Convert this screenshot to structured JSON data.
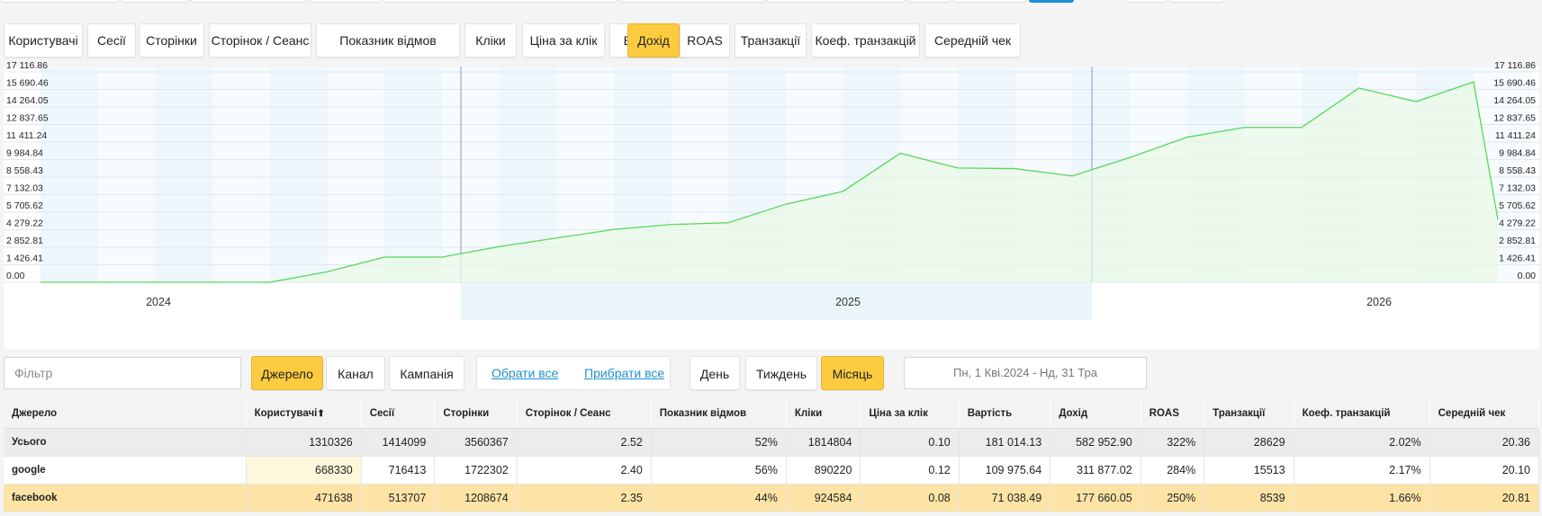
{
  "metric_tabs": [
    {
      "label": "Користувачі",
      "active": false
    },
    {
      "label": "Сесії",
      "active": false
    },
    {
      "label": "Сторінки",
      "active": false
    },
    {
      "label": "Сторінок / Сеанс",
      "active": false
    },
    {
      "label": "Показник відмов",
      "active": false
    },
    {
      "label": "Кліки",
      "active": false
    },
    {
      "label": "Ціна за клік",
      "active": false
    },
    {
      "label": "Вартість",
      "active": false
    },
    {
      "label": "Дохід",
      "active": true
    },
    {
      "label": "ROAS",
      "active": false
    },
    {
      "label": "Транзакції",
      "active": false
    },
    {
      "label": "Коеф. транзакцій",
      "active": false
    },
    {
      "label": "Середній чек",
      "active": false
    }
  ],
  "chart_data": {
    "type": "area",
    "y_ticks": [
      "0.00",
      "1 426.41",
      "2 852.81",
      "4 279.22",
      "5 705.62",
      "7 132.03",
      "8 558.43",
      "9 984.84",
      "11 411.24",
      "12 837.65",
      "14 264.05",
      "15 690.46",
      "17 116.86"
    ],
    "ylim": [
      0,
      17116.86
    ],
    "year_labels": [
      "2024",
      "2025",
      "2026"
    ],
    "series": [
      {
        "values": [
          0,
          0,
          0,
          0,
          0,
          850,
          2050,
          2050,
          2900,
          3600,
          4300,
          4700,
          4850,
          6350,
          7400,
          10500,
          9300,
          9250,
          8650,
          10150,
          11800,
          12600,
          12600,
          15800,
          14700,
          16300,
          5100
        ]
      }
    ],
    "grid": true,
    "colors": {
      "line": "#57d85a",
      "fill": "#e9f9e6",
      "year_boundary": "#7d9ad4",
      "band": "#eaf5fb"
    }
  },
  "controls": {
    "filter_placeholder": "Фільтр",
    "group_buttons": [
      {
        "label": "Джерело",
        "active": true
      },
      {
        "label": "Канал",
        "active": false
      },
      {
        "label": "Кампанія",
        "active": false
      }
    ],
    "select_all": "Обрати все",
    "remove_all": "Прибрати все",
    "period_buttons": [
      {
        "label": "День",
        "active": false
      },
      {
        "label": "Тиждень",
        "active": false
      },
      {
        "label": "Місяць",
        "active": true
      }
    ],
    "date_range": "Пн, 1 Кві.2024 - Нд, 31 Тра"
  },
  "table": {
    "columns": [
      "Джерело",
      "Користувачі",
      "Сесії",
      "Сторінки",
      "Сторінок / Сеанс",
      "Показник відмов",
      "Кліки",
      "Ціна за клік",
      "Вартість",
      "Дохід",
      "ROAS",
      "Транзакції",
      "Коеф. транзакцій",
      "Середній чек"
    ],
    "sort_indicator": "⬆",
    "rows": [
      {
        "kind": "total",
        "cells": [
          "Усього",
          "1310326",
          "1414099",
          "3560367",
          "2.52",
          "52%",
          "1814804",
          "0.10",
          "181 014.13",
          "582 952.90",
          "322%",
          "28629",
          "2.02%",
          "20.36"
        ]
      },
      {
        "kind": "google",
        "cells": [
          "google",
          "668330",
          "716413",
          "1722302",
          "2.40",
          "56%",
          "890220",
          "0.12",
          "109 975.64",
          "311 877.02",
          "284%",
          "15513",
          "2.17%",
          "20.10"
        ]
      },
      {
        "kind": "facebook",
        "cells": [
          "facebook",
          "471638",
          "513707",
          "1208674",
          "2.35",
          "44%",
          "924584",
          "0.08",
          "71 038.49",
          "177 660.05",
          "250%",
          "8539",
          "1.66%",
          "20.81"
        ]
      }
    ]
  },
  "colors": {
    "accent": "#fdcb3f",
    "link": "#1f8fd6"
  }
}
